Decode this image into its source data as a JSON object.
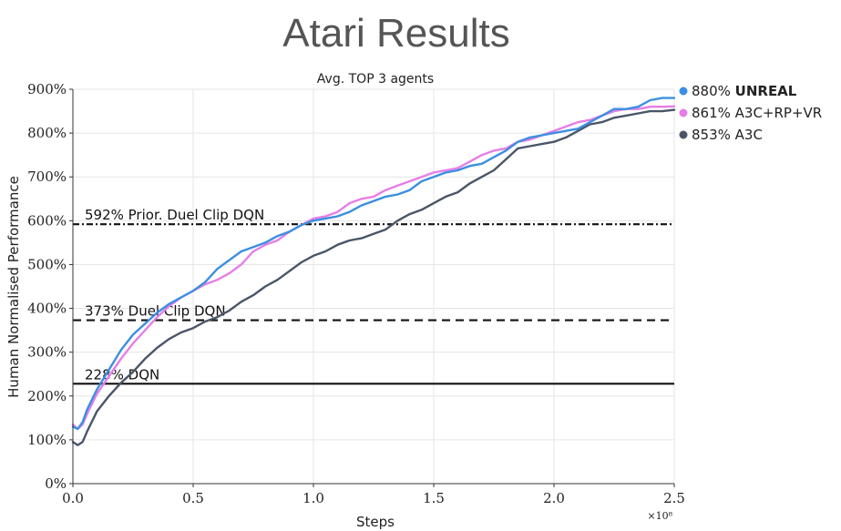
{
  "slide": {
    "title": "Atari Results"
  },
  "chart_data": {
    "type": "line",
    "title": "Avg. TOP 3 agents",
    "xlabel": "Steps",
    "ylabel": "Human Normalised Performance",
    "x_multiplier": "×10⁸",
    "xlim": [
      0,
      2.5
    ],
    "ylim": [
      0,
      900
    ],
    "x_ticks": [
      "0.0",
      "0.5",
      "1.0",
      "1.5",
      "2.0",
      "2.5"
    ],
    "y_ticks": [
      "0%",
      "100%",
      "200%",
      "300%",
      "400%",
      "500%",
      "600%",
      "700%",
      "800%",
      "900%"
    ],
    "grid": true,
    "legend_position": "right",
    "series": [
      {
        "name": "UNREAL",
        "legend_value": "880%",
        "color": "#3b8fe0",
        "bold": true,
        "x": [
          0,
          0.02,
          0.04,
          0.06,
          0.1,
          0.15,
          0.2,
          0.25,
          0.3,
          0.35,
          0.4,
          0.45,
          0.5,
          0.55,
          0.6,
          0.65,
          0.7,
          0.75,
          0.8,
          0.85,
          0.9,
          0.95,
          1.0,
          1.05,
          1.1,
          1.15,
          1.2,
          1.25,
          1.3,
          1.35,
          1.4,
          1.45,
          1.5,
          1.55,
          1.6,
          1.65,
          1.7,
          1.75,
          1.8,
          1.85,
          1.9,
          1.95,
          2.0,
          2.05,
          2.1,
          2.15,
          2.2,
          2.25,
          2.3,
          2.35,
          2.4,
          2.45,
          2.5
        ],
        "y": [
          130,
          125,
          140,
          170,
          215,
          260,
          305,
          340,
          365,
          390,
          410,
          425,
          440,
          460,
          490,
          510,
          530,
          540,
          550,
          565,
          575,
          590,
          600,
          605,
          610,
          620,
          635,
          645,
          655,
          660,
          670,
          690,
          700,
          710,
          715,
          725,
          730,
          745,
          760,
          780,
          790,
          795,
          800,
          805,
          810,
          825,
          840,
          855,
          855,
          860,
          875,
          880,
          880
        ]
      },
      {
        "name": "A3C+RP+VR",
        "legend_value": "861%",
        "color": "#e67ee6",
        "bold": false,
        "x": [
          0,
          0.02,
          0.04,
          0.06,
          0.1,
          0.15,
          0.2,
          0.25,
          0.3,
          0.35,
          0.4,
          0.45,
          0.5,
          0.55,
          0.6,
          0.65,
          0.7,
          0.75,
          0.8,
          0.85,
          0.9,
          0.95,
          1.0,
          1.05,
          1.1,
          1.15,
          1.2,
          1.25,
          1.3,
          1.35,
          1.4,
          1.45,
          1.5,
          1.55,
          1.6,
          1.65,
          1.7,
          1.75,
          1.8,
          1.85,
          1.9,
          1.95,
          2.0,
          2.05,
          2.1,
          2.15,
          2.2,
          2.25,
          2.3,
          2.35,
          2.4,
          2.45,
          2.5
        ],
        "y": [
          135,
          125,
          135,
          160,
          205,
          245,
          285,
          320,
          350,
          380,
          405,
          425,
          440,
          455,
          465,
          480,
          500,
          530,
          545,
          555,
          575,
          590,
          605,
          610,
          620,
          640,
          650,
          655,
          670,
          680,
          690,
          700,
          710,
          715,
          720,
          735,
          750,
          760,
          765,
          780,
          785,
          795,
          805,
          815,
          825,
          830,
          840,
          850,
          855,
          855,
          860,
          860,
          861
        ]
      },
      {
        "name": "A3C",
        "legend_value": "853%",
        "color": "#4a5568",
        "bold": false,
        "x": [
          0,
          0.02,
          0.04,
          0.06,
          0.1,
          0.15,
          0.2,
          0.25,
          0.3,
          0.35,
          0.4,
          0.45,
          0.5,
          0.55,
          0.6,
          0.65,
          0.7,
          0.75,
          0.8,
          0.85,
          0.9,
          0.95,
          1.0,
          1.05,
          1.1,
          1.15,
          1.2,
          1.25,
          1.3,
          1.35,
          1.4,
          1.45,
          1.5,
          1.55,
          1.6,
          1.65,
          1.7,
          1.75,
          1.8,
          1.85,
          1.9,
          1.95,
          2.0,
          2.05,
          2.1,
          2.15,
          2.2,
          2.25,
          2.3,
          2.35,
          2.4,
          2.45,
          2.5
        ],
        "y": [
          95,
          88,
          95,
          120,
          165,
          200,
          230,
          255,
          285,
          310,
          330,
          345,
          355,
          370,
          380,
          395,
          415,
          430,
          450,
          465,
          485,
          505,
          520,
          530,
          545,
          555,
          560,
          570,
          580,
          600,
          615,
          625,
          640,
          655,
          665,
          685,
          700,
          715,
          740,
          765,
          770,
          775,
          780,
          790,
          805,
          820,
          825,
          835,
          840,
          845,
          850,
          850,
          853
        ]
      }
    ],
    "reference_lines": [
      {
        "label": "592% Prior. Duel Clip DQN",
        "y": 592,
        "style": "dashdot"
      },
      {
        "label": "373% Duel Clip DQN",
        "y": 373,
        "style": "dashed"
      },
      {
        "label": "228% DQN",
        "y": 228,
        "style": "solid"
      }
    ]
  }
}
